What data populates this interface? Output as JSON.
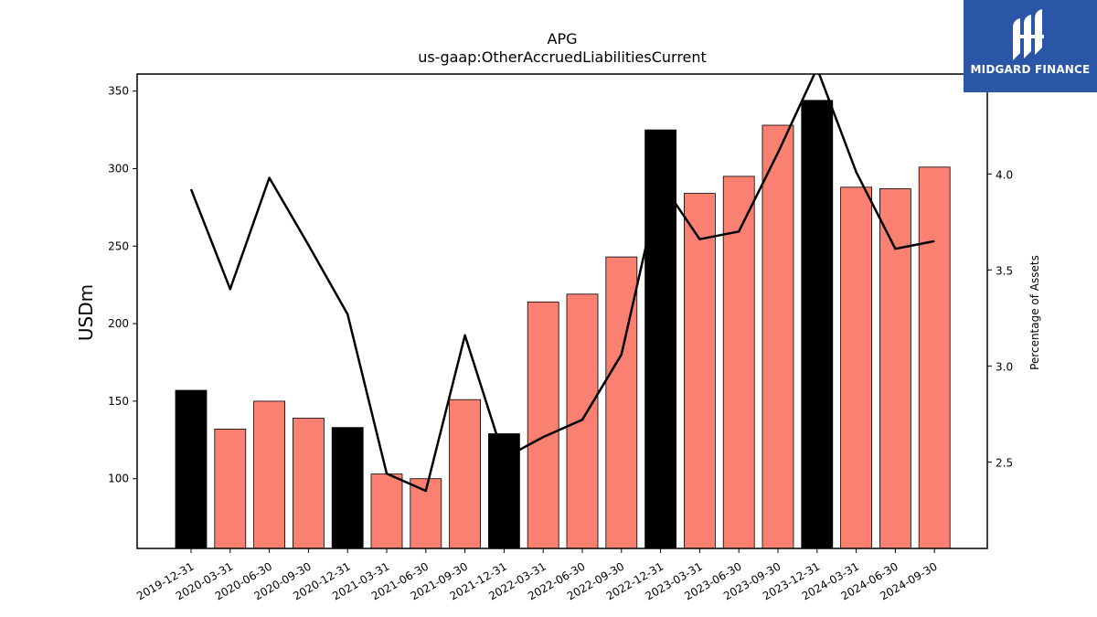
{
  "chart_data": {
    "type": "bar",
    "title": "APG",
    "subtitle": "us-gaap:OtherAccruedLiabilitiesCurrent",
    "ylabel": "USDm",
    "y2label": "Percentage of Assets",
    "ylim": [
      55,
      361
    ],
    "y2lim": [
      2.05,
      4.52
    ],
    "yticks": [
      100,
      150,
      200,
      250,
      300,
      350
    ],
    "y2ticks": [
      2.5,
      3.0,
      3.5,
      4.0
    ],
    "categories": [
      "2019-12-31",
      "2020-03-31",
      "2020-06-30",
      "2020-09-30",
      "2020-12-31",
      "2021-03-31",
      "2021-06-30",
      "2021-09-30",
      "2021-12-31",
      "2022-03-31",
      "2022-06-30",
      "2022-09-30",
      "2022-12-31",
      "2023-03-31",
      "2023-06-30",
      "2023-09-30",
      "2023-12-31",
      "2024-03-31",
      "2024-06-30",
      "2024-09-30"
    ],
    "series": [
      {
        "type": "bar",
        "axis": "left",
        "values": [
          157,
          132,
          150,
          139,
          133,
          103,
          100,
          151,
          129,
          214,
          219,
          243,
          325,
          284,
          295,
          328,
          344,
          288,
          287,
          301
        ]
      },
      {
        "type": "line",
        "axis": "right",
        "values": [
          3.92,
          3.4,
          3.98,
          3.63,
          3.27,
          2.44,
          2.35,
          3.16,
          2.52,
          2.63,
          2.72,
          3.06,
          3.96,
          3.66,
          3.7,
          4.11,
          4.55,
          4.01,
          3.61,
          3.65
        ]
      }
    ],
    "colors": {
      "bar_default": "#fa8072",
      "bar_year_end": "#000000",
      "bar_edge": "#000000",
      "line": "#000000"
    },
    "highlight_indices": [
      0,
      4,
      8,
      12,
      16
    ],
    "grid": false,
    "legend": "none"
  },
  "logo": {
    "text": "MIDGARD FINANCE",
    "icon": "midgard-logo-icon",
    "bg_color": "#2b55a6"
  }
}
